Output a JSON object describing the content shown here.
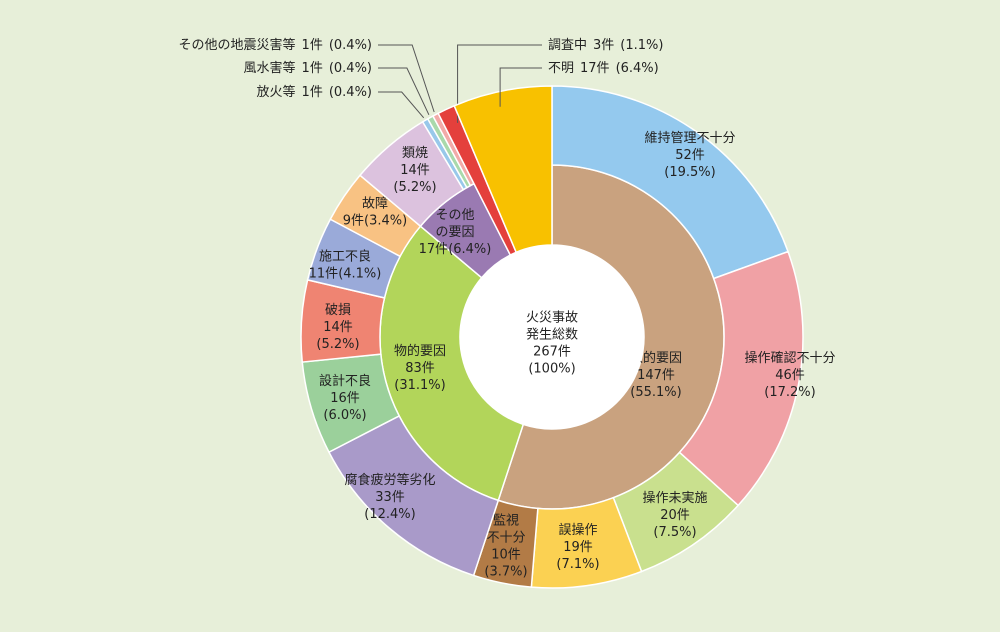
{
  "chart_data": {
    "type": "sunburst",
    "center": {
      "title_lines": [
        "火災事故",
        "発生総数"
      ],
      "total": 267,
      "total_label": "267件",
      "share_label": "(100%)"
    },
    "groups": [
      {
        "name_lines": [
          "人的要因"
        ],
        "value": 147,
        "value_label": "147件",
        "share_label": "(55.1%)",
        "color": "#c9a27f",
        "children": [
          {
            "name_lines": [
              "維持管理不十分"
            ],
            "value": 52,
            "value_label": "52件",
            "share_label": "(19.5%)",
            "color": "#94c9ee"
          },
          {
            "name_lines": [
              "操作確認不十分"
            ],
            "value": 46,
            "value_label": "46件",
            "share_label": "(17.2%)",
            "color": "#f0a1a5"
          },
          {
            "name_lines": [
              "操作未実施"
            ],
            "value": 20,
            "value_label": "20件",
            "share_label": "(7.5%)",
            "color": "#c9e08e"
          },
          {
            "name_lines": [
              "誤操作"
            ],
            "value": 19,
            "value_label": "19件",
            "share_label": "(7.1%)",
            "color": "#fbd152"
          },
          {
            "name_lines": [
              "監視",
              "不十分"
            ],
            "value": 10,
            "value_label": "10件",
            "share_label": "(3.7%)",
            "color": "#b27b46"
          }
        ]
      },
      {
        "name_lines": [
          "物的要因"
        ],
        "value": 83,
        "value_label": "83件",
        "share_label": "(31.1%)",
        "color": "#b2d55a",
        "children": [
          {
            "name_lines": [
              "腐食疲労等劣化"
            ],
            "value": 33,
            "value_label": "33件",
            "share_label": "(12.4%)",
            "color": "#a99ac9"
          },
          {
            "name_lines": [
              "設計不良"
            ],
            "value": 16,
            "value_label": "16件",
            "share_label": "(6.0%)",
            "color": "#9bd09b"
          },
          {
            "name_lines": [
              "破損"
            ],
            "value": 14,
            "value_label": "14件",
            "share_label": "(5.2%)",
            "color": "#ef8472"
          },
          {
            "name_lines": [
              "施工不良"
            ],
            "value": 11,
            "value_label": "11件",
            "share_label": "(4.1%)",
            "color": "#9aaad9"
          },
          {
            "name_lines": [
              "故障"
            ],
            "value": 9,
            "value_label": "9件",
            "share_label": "(3.4%)",
            "color": "#f8c283"
          }
        ]
      },
      {
        "name_lines": [
          "その他",
          "の要因"
        ],
        "value": 17,
        "value_label": "17件",
        "share_label": "(6.4%)",
        "color": "#9a7ab2",
        "children": [
          {
            "name_lines": [
              "類焼"
            ],
            "value": 14,
            "value_label": "14件",
            "share_label": "(5.2%)",
            "color": "#dcc2de"
          },
          {
            "name_lines": [
              "放火等"
            ],
            "value": 1,
            "value_label": "1件",
            "share_label": "(0.4%)",
            "color": "#98c8ea"
          },
          {
            "name_lines": [
              "風水害等"
            ],
            "value": 1,
            "value_label": "1件",
            "share_label": "(0.4%)",
            "color": "#a9d9ab"
          },
          {
            "name_lines": [
              "その他の地震災害等"
            ],
            "value": 1,
            "value_label": "1件",
            "share_label": "(0.4%)",
            "color": "#f2aaa8"
          }
        ]
      },
      {
        "name_lines": [
          "調査中"
        ],
        "value": 3,
        "value_label": "3件",
        "share_label": "(1.1%)",
        "color": "#e4403c",
        "children": []
      },
      {
        "name_lines": [
          "不明"
        ],
        "value": 17,
        "value_label": "17件",
        "share_label": "(6.4%)",
        "color": "#f8c100",
        "children": []
      }
    ]
  }
}
